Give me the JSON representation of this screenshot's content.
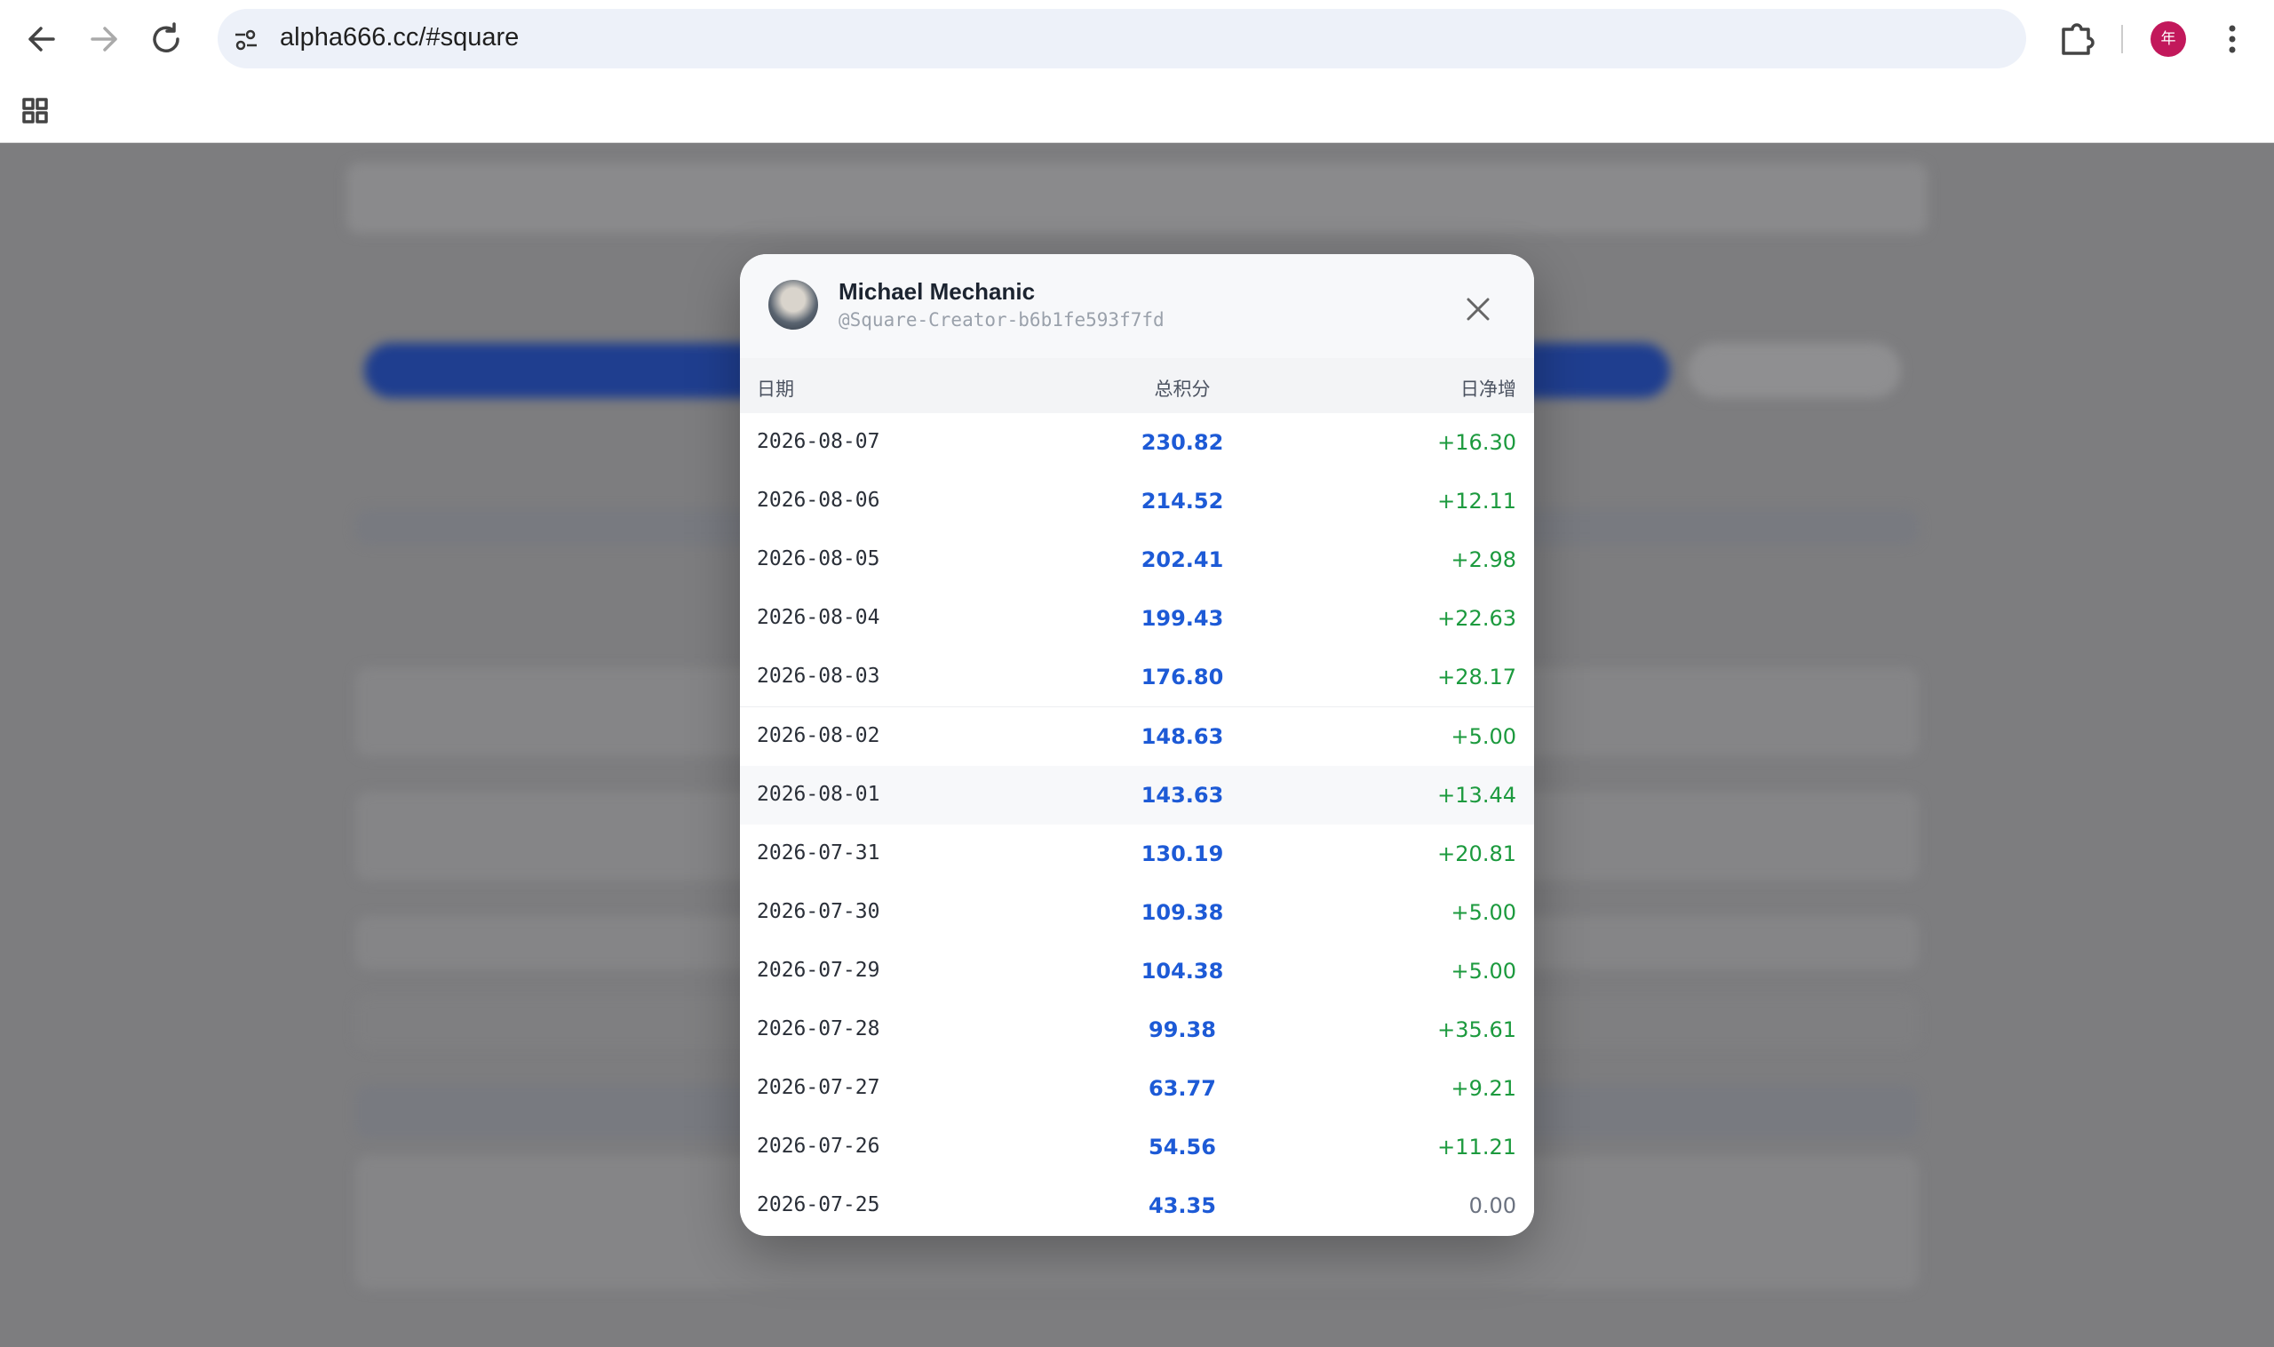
{
  "browser": {
    "url": "alpha666.cc/#square",
    "profile": "年"
  },
  "modal": {
    "name": "Michael Mechanic",
    "handle": "@Square-Creator-b6b1fe593f7fd",
    "table": {
      "headers": [
        "日期",
        "总积分",
        "日净增"
      ],
      "rows": [
        [
          "2026-08-07",
          "230.82",
          "+16.30"
        ],
        [
          "2026-08-06",
          "214.52",
          "+12.11"
        ],
        [
          "2026-08-05",
          "202.41",
          "+2.98"
        ],
        [
          "2026-08-04",
          "199.43",
          "+22.63"
        ],
        [
          "2026-08-03",
          "176.80",
          "+28.17"
        ],
        [
          "2026-08-02",
          "148.63",
          "+5.00"
        ],
        [
          "2026-08-01",
          "143.63",
          "+13.44"
        ],
        [
          "2026-07-31",
          "130.19",
          "+20.81"
        ],
        [
          "2026-07-30",
          "109.38",
          "+5.00"
        ],
        [
          "2026-07-29",
          "104.38",
          "+5.00"
        ],
        [
          "2026-07-28",
          "99.38",
          "+35.61"
        ],
        [
          "2026-07-27",
          "63.77",
          "+9.21"
        ],
        [
          "2026-07-26",
          "54.56",
          "+11.21"
        ],
        [
          "2026-07-25",
          "43.35",
          "0.00"
        ]
      ]
    }
  }
}
